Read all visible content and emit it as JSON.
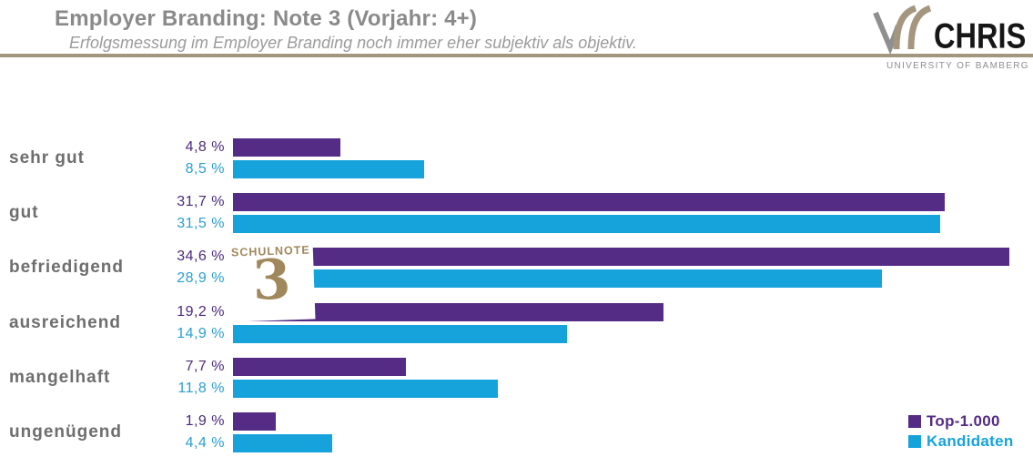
{
  "header": {
    "title": "Employer Branding: Note 3 (Vorjahr: 4+)",
    "subtitle": "Erfolgsmessung im Employer Branding noch immer eher subjektiv als objektiv.",
    "logo": {
      "wordmark": "CHRIS",
      "subtext": "UNIVERSITY OF BAMBERG"
    }
  },
  "stamp": {
    "label": "SCHULNOTE",
    "grade": "3",
    "color": "#a1885c"
  },
  "chart_data": {
    "type": "bar",
    "orientation": "horizontal",
    "title": "Employer Branding: Note 3 (Vorjahr: 4+)",
    "categories": [
      "sehr gut",
      "gut",
      "befriedigend",
      "ausreichend",
      "mangelhaft",
      "ungenügend"
    ],
    "series": [
      {
        "name": "Top-1.000",
        "color": "#542b85",
        "text_color": "#4b2a7c",
        "values": [
          4.8,
          31.7,
          34.6,
          19.2,
          7.7,
          1.9
        ],
        "display_labels": [
          "4,8 %",
          "31,7 %",
          "34,6 %",
          "19,2 %",
          "7,7 %",
          "1,9 %"
        ]
      },
      {
        "name": "Kandidaten",
        "color": "#16a3dc",
        "text_color": "#2b9fd1",
        "values": [
          8.5,
          31.5,
          28.9,
          14.9,
          11.8,
          4.4
        ],
        "display_labels": [
          "8,5 %",
          "31,5 %",
          "28,9 %",
          "14,9 %",
          "11,8 %",
          "4,4 %"
        ]
      }
    ],
    "xlim": [
      0,
      35
    ],
    "value_format": "percent-comma-decimal",
    "grid": false,
    "legend_position": "bottom-right"
  },
  "legend": {
    "items": [
      {
        "label": "Top-1.000",
        "color": "#542b85"
      },
      {
        "label": "Kandidaten",
        "color": "#16a3dc"
      }
    ]
  },
  "colors": {
    "header_rule": "#a3967f",
    "title_text": "#8a8a8a",
    "category_text": "#6e6e6e"
  }
}
